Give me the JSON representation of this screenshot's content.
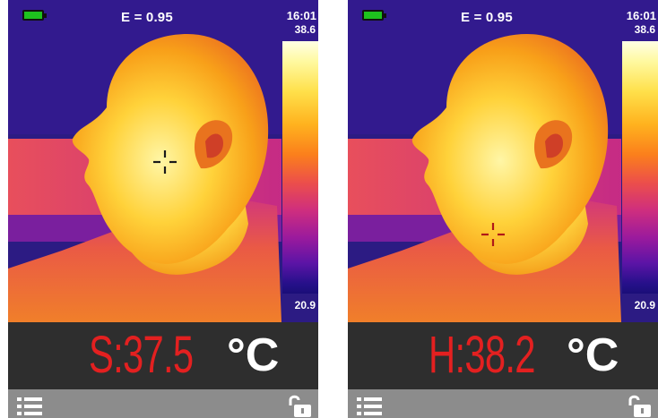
{
  "screens": [
    {
      "status": {
        "emissivity": "E = 0.95",
        "time": "16:01"
      },
      "scale": {
        "max": "38.6",
        "min": "20.9"
      },
      "readout": {
        "value": "S:37.5",
        "unit": "°C"
      },
      "crosshair_color": "#1a1a1a",
      "icons": {
        "battery": "battery-icon",
        "menu": "menu-icon",
        "lock": "unlock-icon",
        "crosshair": "crosshair-icon"
      }
    },
    {
      "status": {
        "emissivity": "E = 0.95",
        "time": "16:01"
      },
      "scale": {
        "max": "38.6",
        "min": "20.9"
      },
      "readout": {
        "value": "H:38.2",
        "unit": "°C"
      },
      "crosshair_color": "#b01818",
      "icons": {
        "battery": "battery-icon",
        "menu": "menu-icon",
        "lock": "unlock-icon",
        "crosshair": "crosshair-icon"
      }
    }
  ],
  "colors": {
    "readout_text": "#e32020",
    "readout_bg": "#2e2e2e",
    "bottom_bar": "#8c8c8c",
    "background": "#2c1b83"
  }
}
